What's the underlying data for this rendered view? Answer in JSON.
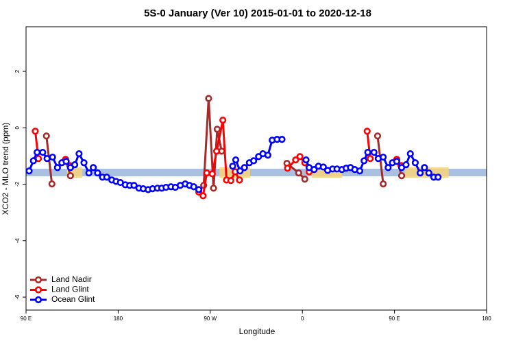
{
  "chart_data": {
    "type": "line",
    "title": "5S-0 January (Ver 10)   2015-01-01 to 2020-12-18",
    "xlabel": "Longitude",
    "ylabel": "XCO2 - MLO trend (ppm)",
    "xlim": [
      90,
      540
    ],
    "ylim": [
      -6.46,
      3.58
    ],
    "xticks": [
      {
        "value": 90,
        "label": "90 E"
      },
      180,
      {
        "value": 270,
        "label": "90 W"
      },
      {
        "value": 360,
        "label": "0"
      },
      {
        "value": 450,
        "label": "90 E"
      },
      {
        "value": 540,
        "label": "180"
      }
    ],
    "yticks": [
      -6,
      -4,
      -2,
      0,
      2
    ],
    "legend": "bottomleft",
    "band": {
      "ymin": -1.72,
      "ymax": -1.45,
      "color": "#a9c0e0"
    },
    "highlight_color": "#f7d37a",
    "highlights": [
      [
        130,
        145
      ],
      [
        279,
        309
      ],
      [
        369,
        399
      ],
      [
        460,
        503
      ]
    ],
    "series": [
      {
        "name": "Land Nadir",
        "color": "#a52a2a",
        "x": [
          109.9,
          115.3,
          null,
          128.6,
          133.4,
          null,
          263.6,
          268.4,
          273.2,
          276.8,
          281.1,
          null,
          344.9,
          356.4,
          362.4,
          null,
          433.5,
          439.0,
          null,
          452.2,
          457.0
        ],
        "values": [
          -0.29,
          -1.99,
          null,
          -1.12,
          -1.7,
          null,
          -2.04,
          1.04,
          -2.14,
          -0.05,
          -0.83,
          null,
          -1.26,
          -1.6,
          -1.82,
          null,
          -0.29,
          -1.99,
          null,
          -1.12,
          -1.7
        ]
      },
      {
        "name": "Land Glint",
        "color": "#ff0000",
        "x": [
          99.0,
          102.1,
          null,
          128.6,
          132.8,
          null,
          258.8,
          263.0,
          266.6,
          272.0,
          276.2,
          282.3,
          285.9,
          290.1,
          294.3,
          298.5,
          null,
          345.5,
          353.4,
          357.6,
          362.4,
          366.6,
          null,
          423.3,
          426.3,
          null,
          452.2,
          456.4
        ],
        "values": [
          -0.12,
          -1.09,
          null,
          -1.12,
          -1.34,
          null,
          -2.28,
          -2.41,
          -1.6,
          -1.63,
          -0.83,
          0.27,
          -1.85,
          -1.87,
          -1.56,
          -1.85,
          null,
          -1.43,
          -1.14,
          -1.02,
          -1.24,
          -1.56,
          null,
          -0.12,
          -1.09,
          null,
          -1.12,
          -1.34
        ]
      },
      {
        "name": "Ocean Glint",
        "color": "#0000ff",
        "x": [
          93.0,
          97.2,
          100.8,
          106.3,
          110.5,
          115.9,
          120.7,
          125.0,
          129.2,
          133.4,
          137.6,
          141.8,
          146.6,
          151.4,
          155.7,
          159.9,
          164.7,
          168.9,
          173.8,
          178.0,
          182.2,
          187.0,
          191.3,
          195.5,
          200.3,
          204.5,
          209.3,
          213.6,
          218.4,
          222.6,
          226.8,
          231.6,
          235.9,
          240.7,
          245.5,
          249.7,
          253.9,
          258.8,
          null,
          291.9,
          294.9,
          299.1,
          303.4,
          308.2,
          312.4,
          317.2,
          321.4,
          326.3,
          330.5,
          335.3,
          340.1,
          null,
          363.6,
          366.6,
          371.5,
          375.7,
          380.5,
          384.7,
          389.5,
          393.8,
          398.6,
          402.8,
          407.0,
          411.2,
          416.1,
          420.3,
          423.9,
          430.0,
          434.1,
          439.0,
          443.8,
          448.0,
          452.2,
          457.0,
          461.3,
          465.5,
          470.3,
          475.1,
          479.3,
          483.6,
          488.4,
          492.6
        ],
        "values": [
          -1.53,
          -1.17,
          -0.87,
          -0.87,
          -1.09,
          -1.04,
          -1.41,
          -1.24,
          -1.19,
          -1.41,
          -1.31,
          -0.92,
          -1.24,
          -1.6,
          -1.41,
          -1.6,
          -1.75,
          -1.75,
          -1.85,
          -1.9,
          -1.94,
          -2.02,
          -2.04,
          -2.04,
          -2.14,
          -2.16,
          -2.19,
          -2.16,
          -2.14,
          -2.14,
          -2.11,
          -2.09,
          -2.11,
          -2.04,
          -1.99,
          -2.04,
          -2.09,
          -2.19,
          null,
          -1.36,
          -1.14,
          -1.53,
          -1.41,
          -1.24,
          -1.17,
          -1.02,
          -0.92,
          -0.97,
          -0.44,
          -0.41,
          -0.41,
          null,
          -1.14,
          -1.41,
          -1.48,
          -1.36,
          -1.39,
          -1.51,
          -1.46,
          -1.46,
          -1.48,
          -1.43,
          -1.41,
          -1.48,
          -1.53,
          -1.17,
          -0.87,
          -0.87,
          -1.09,
          -1.04,
          -1.41,
          -1.24,
          -1.19,
          -1.41,
          -1.31,
          -0.92,
          -1.24,
          -1.6,
          -1.41,
          -1.6,
          -1.75,
          -1.75
        ]
      }
    ]
  }
}
